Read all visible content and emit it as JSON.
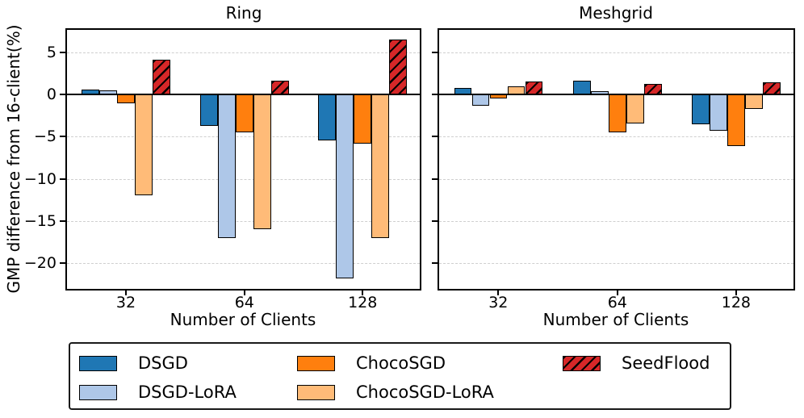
{
  "chart_data": [
    {
      "type": "bar",
      "title": "Ring",
      "xlabel": "Number of Clients",
      "ylabel": "GMP difference from 16-client(%)",
      "categories": [
        "32",
        "64",
        "128"
      ],
      "series": [
        {
          "name": "DSGD",
          "color": "#1f77b4",
          "hatch": false,
          "values": [
            0.6,
            -3.7,
            -5.5
          ]
        },
        {
          "name": "DSGD-LoRA",
          "color": "#aec7e8",
          "hatch": false,
          "values": [
            0.5,
            -17.0,
            -21.8
          ]
        },
        {
          "name": "ChocoSGD",
          "color": "#ff7f0e",
          "hatch": false,
          "values": [
            -1.1,
            -4.5,
            -5.8
          ]
        },
        {
          "name": "ChocoSGD-LoRA",
          "color": "#ffbb78",
          "hatch": false,
          "values": [
            -12.0,
            -16.0,
            -17.0
          ]
        },
        {
          "name": "SeedFlood",
          "color": "#d62728",
          "hatch": true,
          "values": [
            4.1,
            1.6,
            6.5
          ]
        }
      ],
      "yticks": [
        5,
        0,
        -5,
        -10,
        -15,
        -20
      ],
      "ylim": [
        -23.2,
        7.8
      ],
      "grid": "dashed"
    },
    {
      "type": "bar",
      "title": "Meshgrid",
      "xlabel": "Number of Clients",
      "ylabel": "GMP difference from 16-client(%)",
      "categories": [
        "32",
        "64",
        "128"
      ],
      "series": [
        {
          "name": "DSGD",
          "color": "#1f77b4",
          "hatch": false,
          "values": [
            0.8,
            1.6,
            -3.5
          ]
        },
        {
          "name": "DSGD-LoRA",
          "color": "#aec7e8",
          "hatch": false,
          "values": [
            -1.3,
            0.4,
            -4.3
          ]
        },
        {
          "name": "ChocoSGD",
          "color": "#ff7f0e",
          "hatch": false,
          "values": [
            -0.5,
            -4.5,
            -6.1
          ]
        },
        {
          "name": "ChocoSGD-LoRA",
          "color": "#ffbb78",
          "hatch": false,
          "values": [
            1.0,
            -3.4,
            -1.7
          ]
        },
        {
          "name": "SeedFlood",
          "color": "#d62728",
          "hatch": true,
          "values": [
            1.5,
            1.2,
            1.4
          ]
        }
      ],
      "yticks": [
        5,
        0,
        -5,
        -10,
        -15,
        -20
      ],
      "ylim": [
        -23.2,
        7.8
      ],
      "grid": "dashed"
    }
  ],
  "legend": {
    "columns": [
      {
        "items": [
          {
            "label": "DSGD",
            "color": "#1f77b4",
            "hatch": false
          },
          {
            "label": "DSGD-LoRA",
            "color": "#aec7e8",
            "hatch": false
          }
        ]
      },
      {
        "items": [
          {
            "label": "ChocoSGD",
            "color": "#ff7f0e",
            "hatch": false
          },
          {
            "label": "ChocoSGD-LoRA",
            "color": "#ffbb78",
            "hatch": false
          }
        ]
      },
      {
        "items": [
          {
            "label": "SeedFlood",
            "color": "#d62728",
            "hatch": true
          }
        ]
      }
    ]
  }
}
